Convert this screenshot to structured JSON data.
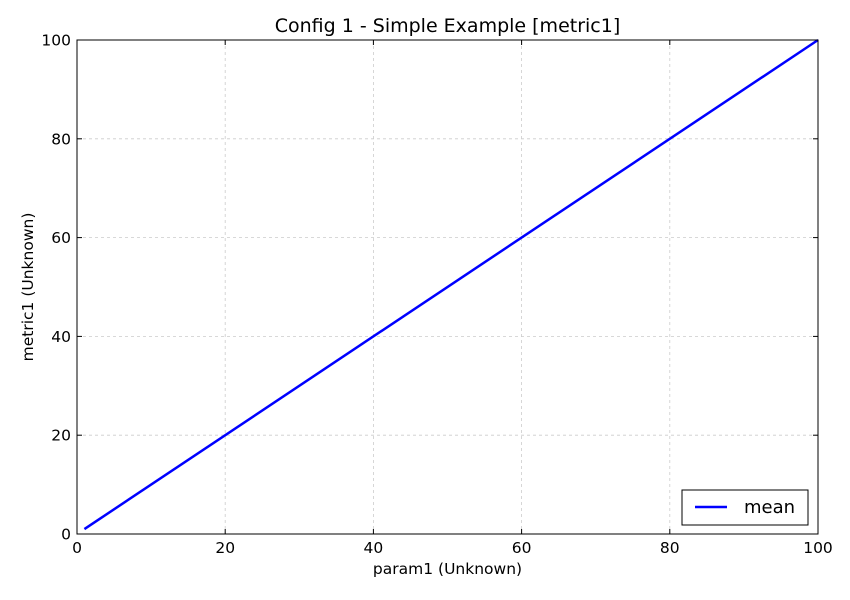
{
  "chart_data": {
    "type": "line",
    "title": "Config 1 - Simple Example [metric1]",
    "xlabel": "param1 (Unknown)",
    "ylabel": "metric1 (Unknown)",
    "xlim": [
      0,
      100
    ],
    "ylim": [
      0,
      100
    ],
    "x_ticks": [
      0,
      20,
      40,
      60,
      80,
      100
    ],
    "y_ticks": [
      0,
      20,
      40,
      60,
      80,
      100
    ],
    "grid": true,
    "legend_position": "lower-right",
    "series": [
      {
        "name": "mean",
        "color": "#0000ff",
        "x": [
          1,
          100
        ],
        "y": [
          1,
          100
        ]
      }
    ]
  }
}
